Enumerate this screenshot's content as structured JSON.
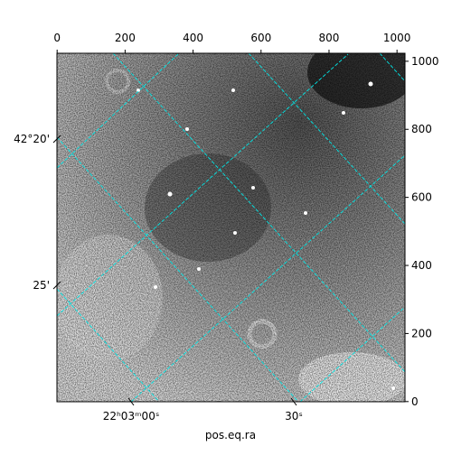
{
  "chart_data": {
    "type": "image",
    "xlabel": "pos.eq.ra",
    "xlim": [
      -0.5,
      1023.5
    ],
    "ylim": [
      -0.5,
      1023.5
    ],
    "xticks": [
      0,
      200,
      400,
      600,
      800,
      1000
    ],
    "yticks": [
      0,
      200,
      400,
      600,
      800,
      1000
    ],
    "ra_tick_labels": [
      "22ʰ03ᵐ00ˢ",
      "30ˢ"
    ],
    "dec_tick_labels": [
      "42°20'",
      "25'"
    ],
    "grid_color": "#00e5e5"
  }
}
